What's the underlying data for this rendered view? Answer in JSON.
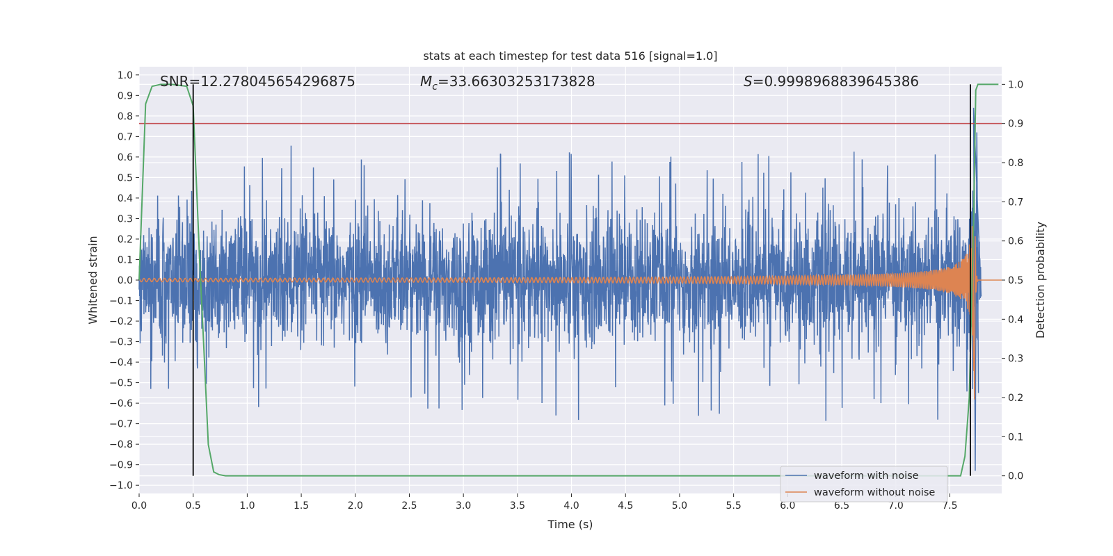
{
  "chart_data": {
    "type": "line",
    "title": "stats at each timestep for test data 516 [signal=1.0]",
    "xlabel": "Time (s)",
    "ylabel": "Whitened strain",
    "y2label": "Detection probability",
    "xlim": [
      0.0,
      7.98
    ],
    "ylim": [
      -1.04,
      1.04
    ],
    "y2lim": [
      -0.045,
      1.045
    ],
    "x_ticks": [
      0.0,
      0.5,
      1.0,
      1.5,
      2.0,
      2.5,
      3.0,
      3.5,
      4.0,
      4.5,
      5.0,
      5.5,
      6.0,
      6.5,
      7.0,
      7.5
    ],
    "x_tick_labels": [
      "0.0",
      "0.5",
      "1.0",
      "1.5",
      "2.0",
      "2.5",
      "3.0",
      "3.5",
      "4.0",
      "4.5",
      "5.0",
      "5.5",
      "6.0",
      "6.5",
      "7.0",
      "7.5"
    ],
    "y_ticks": [
      1.0,
      0.9,
      0.8,
      0.7,
      0.6,
      0.5,
      0.4,
      0.3,
      0.2,
      0.1,
      0.0,
      -0.1,
      -0.2,
      -0.3,
      -0.4,
      -0.5,
      -0.6,
      -0.7,
      -0.8,
      -0.9,
      -1.0
    ],
    "y_tick_labels": [
      "1.0",
      "0.9",
      "0.8",
      "0.7",
      "0.6",
      "0.5",
      "0.4",
      "0.3",
      "0.2",
      "0.1",
      "0.0",
      "−0.1",
      "−0.2",
      "−0.3",
      "−0.4",
      "−0.5",
      "−0.6",
      "−0.7",
      "−0.8",
      "−0.9",
      "−1.0"
    ],
    "y2_ticks": [
      1.0,
      0.9,
      0.8,
      0.7,
      0.6,
      0.5,
      0.4,
      0.3,
      0.2,
      0.1,
      0.0
    ],
    "y2_tick_labels": [
      "1.0",
      "0.9",
      "0.8",
      "0.7",
      "0.6",
      "0.5",
      "0.4",
      "0.3",
      "0.2",
      "0.1",
      "0.0"
    ],
    "annotations": {
      "snr": "SNR=12.278045654296875",
      "mc_symbol": "M",
      "mc_subscript": "c",
      "mc_value": "=33.66303253173828",
      "s_symbol": "S",
      "s_value": "=0.9998968839645386"
    },
    "legend": {
      "position": "lower-right",
      "entries": [
        {
          "label": "waveform with noise",
          "color": "#4c72b0"
        },
        {
          "label": "waveform without noise",
          "color": "#dd8452"
        }
      ]
    },
    "threshold_line": {
      "axis": "right",
      "value": 0.9,
      "color": "#c44e52"
    },
    "vertical_markers": [
      0.5,
      7.69
    ],
    "series": [
      {
        "name": "waveform with noise",
        "color": "#4c72b0",
        "axis": "left",
        "kind": "noise",
        "typical_amplitude": 0.3,
        "peak_amplitude": 0.67,
        "trough_amplitude": -0.79
      },
      {
        "name": "waveform without noise",
        "color": "#dd8452",
        "axis": "left",
        "kind": "chirp",
        "merger_time": 7.73,
        "peak_amplitude": 0.6
      },
      {
        "name": "detection probability",
        "color": "#55a868",
        "axis": "right",
        "x": [
          0.0,
          0.06,
          0.12,
          0.2,
          0.3,
          0.44,
          0.5,
          0.56,
          0.6,
          0.64,
          0.69,
          0.74,
          0.8,
          7.6,
          7.64,
          7.68,
          7.72,
          7.74,
          7.76,
          7.85,
          7.95
        ],
        "y": [
          0.5,
          0.95,
          0.995,
          1.0,
          1.0,
          0.995,
          0.945,
          0.55,
          0.32,
          0.08,
          0.01,
          0.003,
          0.0,
          0.0,
          0.05,
          0.2,
          0.65,
          0.985,
          1.0,
          1.0,
          1.0
        ]
      }
    ]
  }
}
